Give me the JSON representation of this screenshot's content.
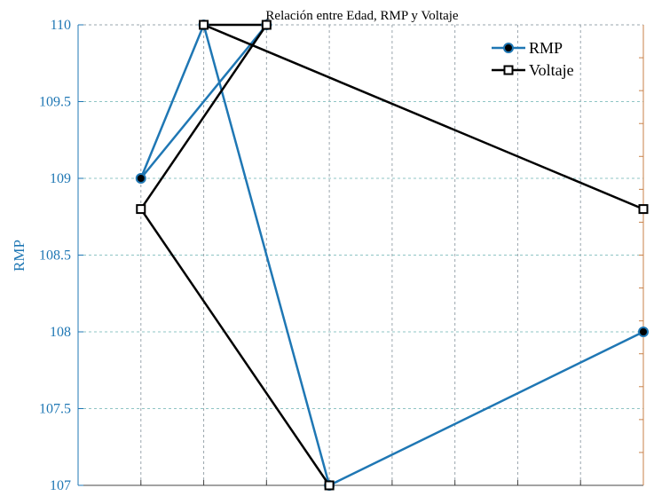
{
  "chart_data": {
    "type": "line",
    "title": "Relación entre Edad, RMP y Voltaje",
    "xlabel": "",
    "ylabel": "RMP",
    "ylim": [
      107,
      110
    ],
    "yticks": [
      "107",
      "107.5",
      "108",
      "108.5",
      "109",
      "109.5",
      "110"
    ],
    "grid": true,
    "legend_position": "top-right",
    "colors": {
      "rmp": "#1f77b4",
      "voltaje": "#000000",
      "right_axis": "#c8824a",
      "grid": "#9aa6ad"
    },
    "series": [
      {
        "name": "RMP",
        "marker": "filled-circle",
        "axis": "left",
        "points": [
          {
            "x": 1,
            "y": 109
          },
          {
            "x": 2,
            "y": 110
          },
          {
            "x": 3,
            "y": 110
          },
          {
            "x": 4,
            "y": 107
          },
          {
            "x": 9,
            "y": 108
          }
        ],
        "path_order": [
          2,
          0,
          1,
          3,
          4
        ]
      },
      {
        "name": "Voltaje",
        "marker": "open-square",
        "axis": "right",
        "points": [
          {
            "x": 1,
            "y": 108.8
          },
          {
            "x": 2,
            "y": 110
          },
          {
            "x": 3,
            "y": 110
          },
          {
            "x": 4,
            "y": 107
          },
          {
            "x": 9,
            "y": 108.8
          }
        ],
        "path_order": [
          3,
          0,
          2,
          1,
          4
        ]
      }
    ]
  }
}
